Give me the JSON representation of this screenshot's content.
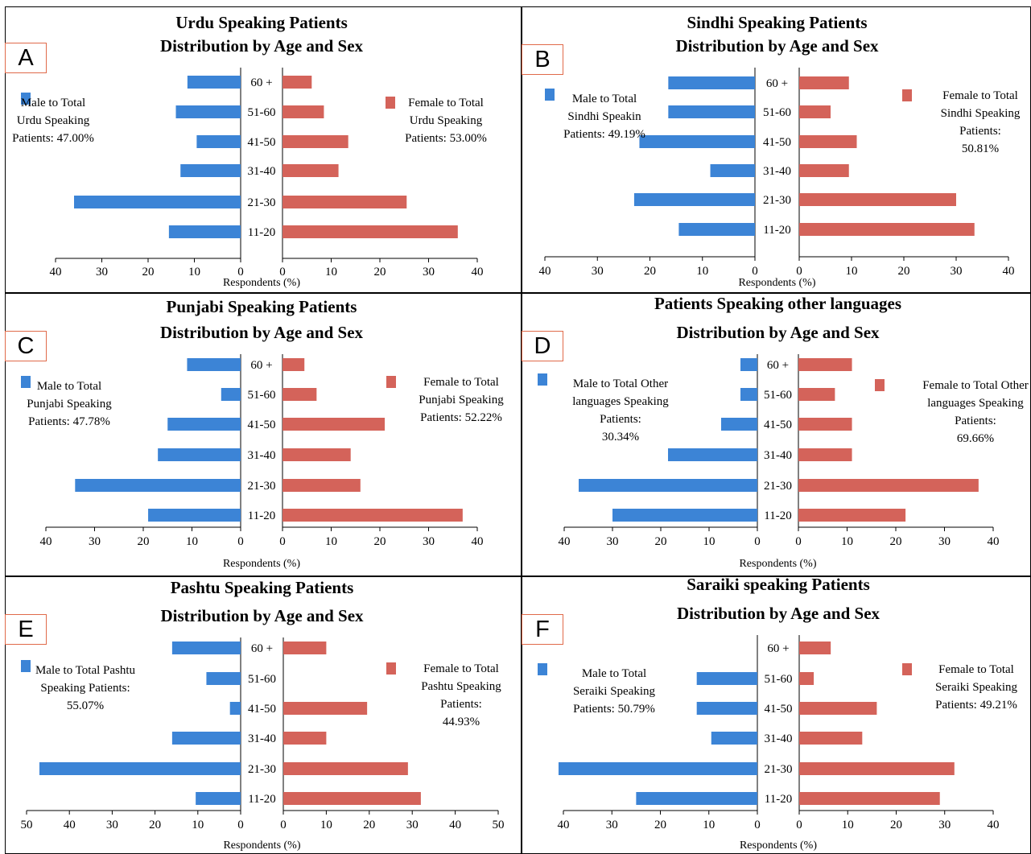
{
  "colors": {
    "male": "#3c84d6",
    "female": "#d4635a",
    "letter_border": "#e06a4a"
  },
  "chart_data": [
    {
      "type": "bar",
      "letter": "A",
      "title": "Urdu Speaking Patients",
      "subtitle": "Distribution by Age and Sex",
      "categories": [
        "60 +",
        "51-60",
        "41-50",
        "31-40",
        "21-30",
        "11-20"
      ],
      "series": [
        {
          "name": "Male to Total Urdu Speaking Patients: 47.00%",
          "values": [
            11.5,
            14,
            9.5,
            13,
            36,
            15.5
          ]
        },
        {
          "name": "Female to Total Urdu Speaking Patients: 53.00%",
          "values": [
            6,
            8.5,
            13.5,
            11.5,
            25.5,
            36
          ]
        }
      ],
      "legend": {
        "male_lines": [
          "Male to Total",
          "Urdu Speaking",
          "Patients: 47.00%"
        ],
        "female_lines": [
          "Female to Total",
          "Urdu Speaking",
          "Patients: 53.00%"
        ]
      },
      "xlabel": "Respondents (%)",
      "xlim": [
        0,
        40
      ],
      "ticks": [
        "40",
        "30",
        "20",
        "10",
        "0"
      ],
      "ticks_right": [
        "0",
        "10",
        "20",
        "30",
        "40"
      ]
    },
    {
      "type": "bar",
      "letter": "B",
      "title": "Sindhi Speaking Patients",
      "subtitle": "Distribution by Age and Sex",
      "categories": [
        "60 +",
        "51-60",
        "41-50",
        "31-40",
        "21-30",
        "11-20"
      ],
      "series": [
        {
          "name": "Male to Total Sindhi Speaking Patients: 49.19%",
          "values": [
            16.5,
            16.5,
            22,
            8.5,
            23,
            14.5
          ]
        },
        {
          "name": "Female to Total Sindhi Speaking Patients: 50.81%",
          "values": [
            9.5,
            6,
            11,
            9.5,
            30,
            33.5
          ]
        }
      ],
      "legend": {
        "male_lines": [
          "Male to Total",
          "Sindhi Speakin",
          "Patients: 49.19%"
        ],
        "female_lines": [
          "Female to Total",
          "Sindhi Speaking",
          "Patients:",
          "50.81%"
        ]
      },
      "xlabel": "Respondents (%)",
      "xlim": [
        0,
        40
      ],
      "ticks": [
        "40",
        "30",
        "20",
        "10",
        "0"
      ],
      "ticks_right": [
        "0",
        "10",
        "20",
        "30",
        "40"
      ]
    },
    {
      "type": "bar",
      "letter": "C",
      "title": "Punjabi Speaking Patients",
      "subtitle": "Distribution by Age and Sex",
      "categories": [
        "60 +",
        "51-60",
        "41-50",
        "31-40",
        "21-30",
        "11-20"
      ],
      "series": [
        {
          "name": "Male to Total Punjabi Speaking Patients: 47.78%",
          "values": [
            11,
            4,
            15,
            17,
            34,
            19
          ]
        },
        {
          "name": "Female to Total Punjabi Speaking Patients: 52.22%",
          "values": [
            4.5,
            7,
            21,
            14,
            16,
            37
          ]
        }
      ],
      "legend": {
        "male_lines": [
          "Male to Total",
          "Punjabi Speaking",
          "Patients: 47.78%"
        ],
        "female_lines": [
          "Female to Total",
          "Punjabi Speaking",
          "Patients: 52.22%"
        ]
      },
      "xlabel": "Respondents (%)",
      "xlim": [
        0,
        40
      ],
      "ticks": [
        "40",
        "30",
        "20",
        "10",
        "0"
      ],
      "ticks_right": [
        "0",
        "10",
        "20",
        "30",
        "40"
      ]
    },
    {
      "type": "bar",
      "letter": "D",
      "title": "Patients Speaking other languages",
      "subtitle": "Distribution by Age and Sex",
      "categories": [
        "60 +",
        "51-60",
        "41-50",
        "31-40",
        "21-30",
        "11-20"
      ],
      "series": [
        {
          "name": "Male to Total Other languages Speaking Patients: 30.34%",
          "values": [
            3.5,
            3.5,
            7.5,
            18.5,
            37,
            30
          ]
        },
        {
          "name": "Female to Total Other languages Speaking Patients: 69.66%",
          "values": [
            11,
            7.5,
            11,
            11,
            37,
            22
          ]
        }
      ],
      "legend": {
        "male_lines": [
          "Male to Total Other",
          "languages  Speaking",
          "Patients:",
          "30.34%"
        ],
        "female_lines": [
          "Female to Total Other",
          "languages  Speaking",
          "Patients:",
          "69.66%"
        ]
      },
      "xlabel": "Respondents (%)",
      "xlim": [
        0,
        40
      ],
      "ticks": [
        "40",
        "30",
        "20",
        "10",
        "0"
      ],
      "ticks_right": [
        "0",
        "10",
        "20",
        "30",
        "40"
      ]
    },
    {
      "type": "bar",
      "letter": "E",
      "title": "Pashtu Speaking Patients",
      "subtitle": "Distribution by Age and Sex",
      "categories": [
        "60 +",
        "51-60",
        "41-50",
        "31-40",
        "21-30",
        "11-20"
      ],
      "series": [
        {
          "name": "Male to Total Pashtu Speaking Patients: 55.07%",
          "values": [
            16,
            8,
            2.5,
            16,
            47,
            10.5
          ]
        },
        {
          "name": "Female to Total Pashtu Speaking Patients: 44.93%",
          "values": [
            10,
            0,
            19.5,
            10,
            29,
            32
          ]
        }
      ],
      "legend": {
        "male_lines": [
          "Male to Total Pashtu",
          "Speaking Patients:",
          "55.07%"
        ],
        "female_lines": [
          "Female to Total",
          "Pashtu  Speaking",
          "Patients:",
          "44.93%"
        ]
      },
      "xlabel": "Respondents (%)",
      "xlim": [
        0,
        50
      ],
      "ticks": [
        "50",
        "40",
        "30",
        "20",
        "10",
        "0"
      ],
      "ticks_right": [
        "0",
        "10",
        "20",
        "30",
        "40",
        "50"
      ]
    },
    {
      "type": "bar",
      "letter": "F",
      "title": "Saraiki speaking Patients",
      "subtitle": "Distribution by Age and Sex",
      "categories": [
        "60 +",
        "51-60",
        "41-50",
        "31-40",
        "21-30",
        "11-20"
      ],
      "series": [
        {
          "name": "Male to Total Seraiki Speaking Patients: 50.79%",
          "values": [
            0,
            12.5,
            12.5,
            9.5,
            41,
            25
          ]
        },
        {
          "name": "Female to Total Seraiki Speaking Patients: 49.21%",
          "values": [
            6.5,
            3,
            16,
            13,
            32,
            29
          ]
        }
      ],
      "legend": {
        "male_lines": [
          "Male to Total",
          "Seraiki Speaking",
          "Patients: 50.79%"
        ],
        "female_lines": [
          "Female to Total",
          "Seraiki Speaking",
          "Patients: 49.21%"
        ]
      },
      "xlabel": "Respondents (%)",
      "xlim": [
        0,
        40
      ],
      "ticks": [
        "40",
        "30",
        "20",
        "10",
        "0"
      ],
      "ticks_right": [
        "0",
        "10",
        "20",
        "30",
        "40"
      ]
    }
  ]
}
